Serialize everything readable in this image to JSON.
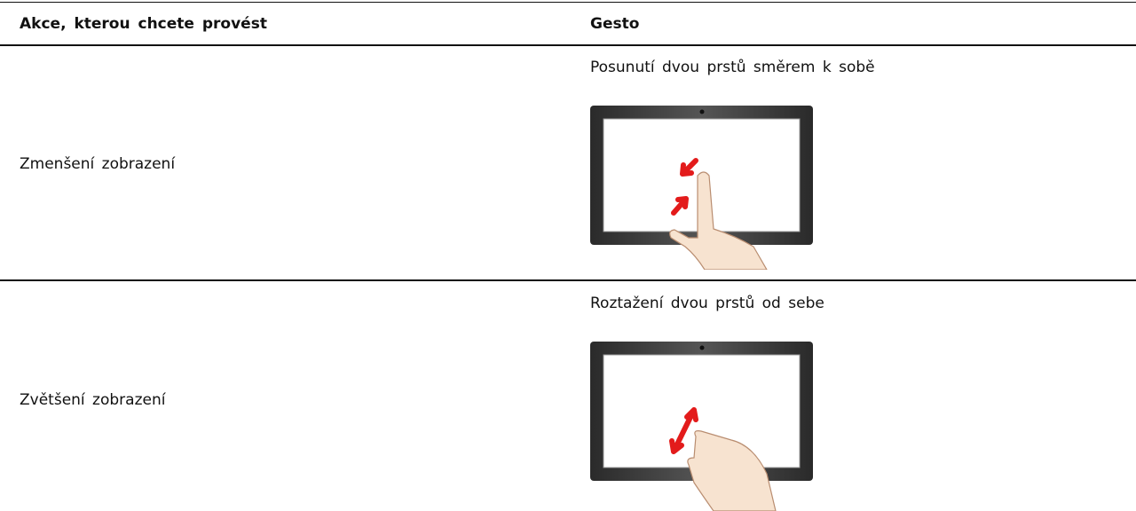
{
  "table": {
    "header": [
      "Akce, kterou chcete provést",
      "Gesto"
    ],
    "rows": [
      {
        "action": "Zmenšení zobrazení",
        "gesture": "Posunutí dvou prstů směrem k sobě"
      },
      {
        "action": "Zvětšení zobrazení",
        "gesture": "Roztažení dvou prstů od sebe"
      }
    ]
  }
}
